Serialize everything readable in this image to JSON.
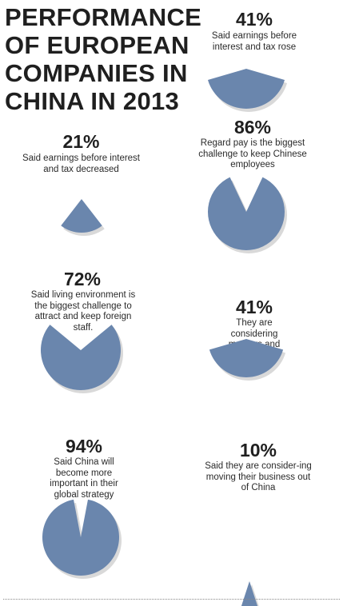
{
  "title": "PERFORMANCE OF EUROPEAN COMPANIES IN CHINA IN 2013",
  "chart_data": [
    {
      "type": "pie",
      "value": 41,
      "label": "41%",
      "description": "Said earnings before interest and tax rose"
    },
    {
      "type": "pie",
      "value": 21,
      "label": "21%",
      "description": "Said earnings before interest and tax decreased"
    },
    {
      "type": "pie",
      "value": 86,
      "label": "86%",
      "description": "Regard pay is the biggest challenge to keep Chinese employees"
    },
    {
      "type": "pie",
      "value": 72,
      "label": "72%",
      "description": "Said living environment is the biggest challenge to attract and keep foreign staff."
    },
    {
      "type": "pie",
      "value": 41,
      "label": "41%",
      "description": "They are considering mergers and acquisitions"
    },
    {
      "type": "pie",
      "value": 94,
      "label": "94%",
      "description": "Said China will become more important in their global strategy"
    },
    {
      "type": "pie",
      "value": 10,
      "label": "10%",
      "description": "Said they are consider-ing moving their business out of China"
    }
  ],
  "colors": {
    "slice": "#6a86ad",
    "shadow": "#b9b9b9"
  }
}
